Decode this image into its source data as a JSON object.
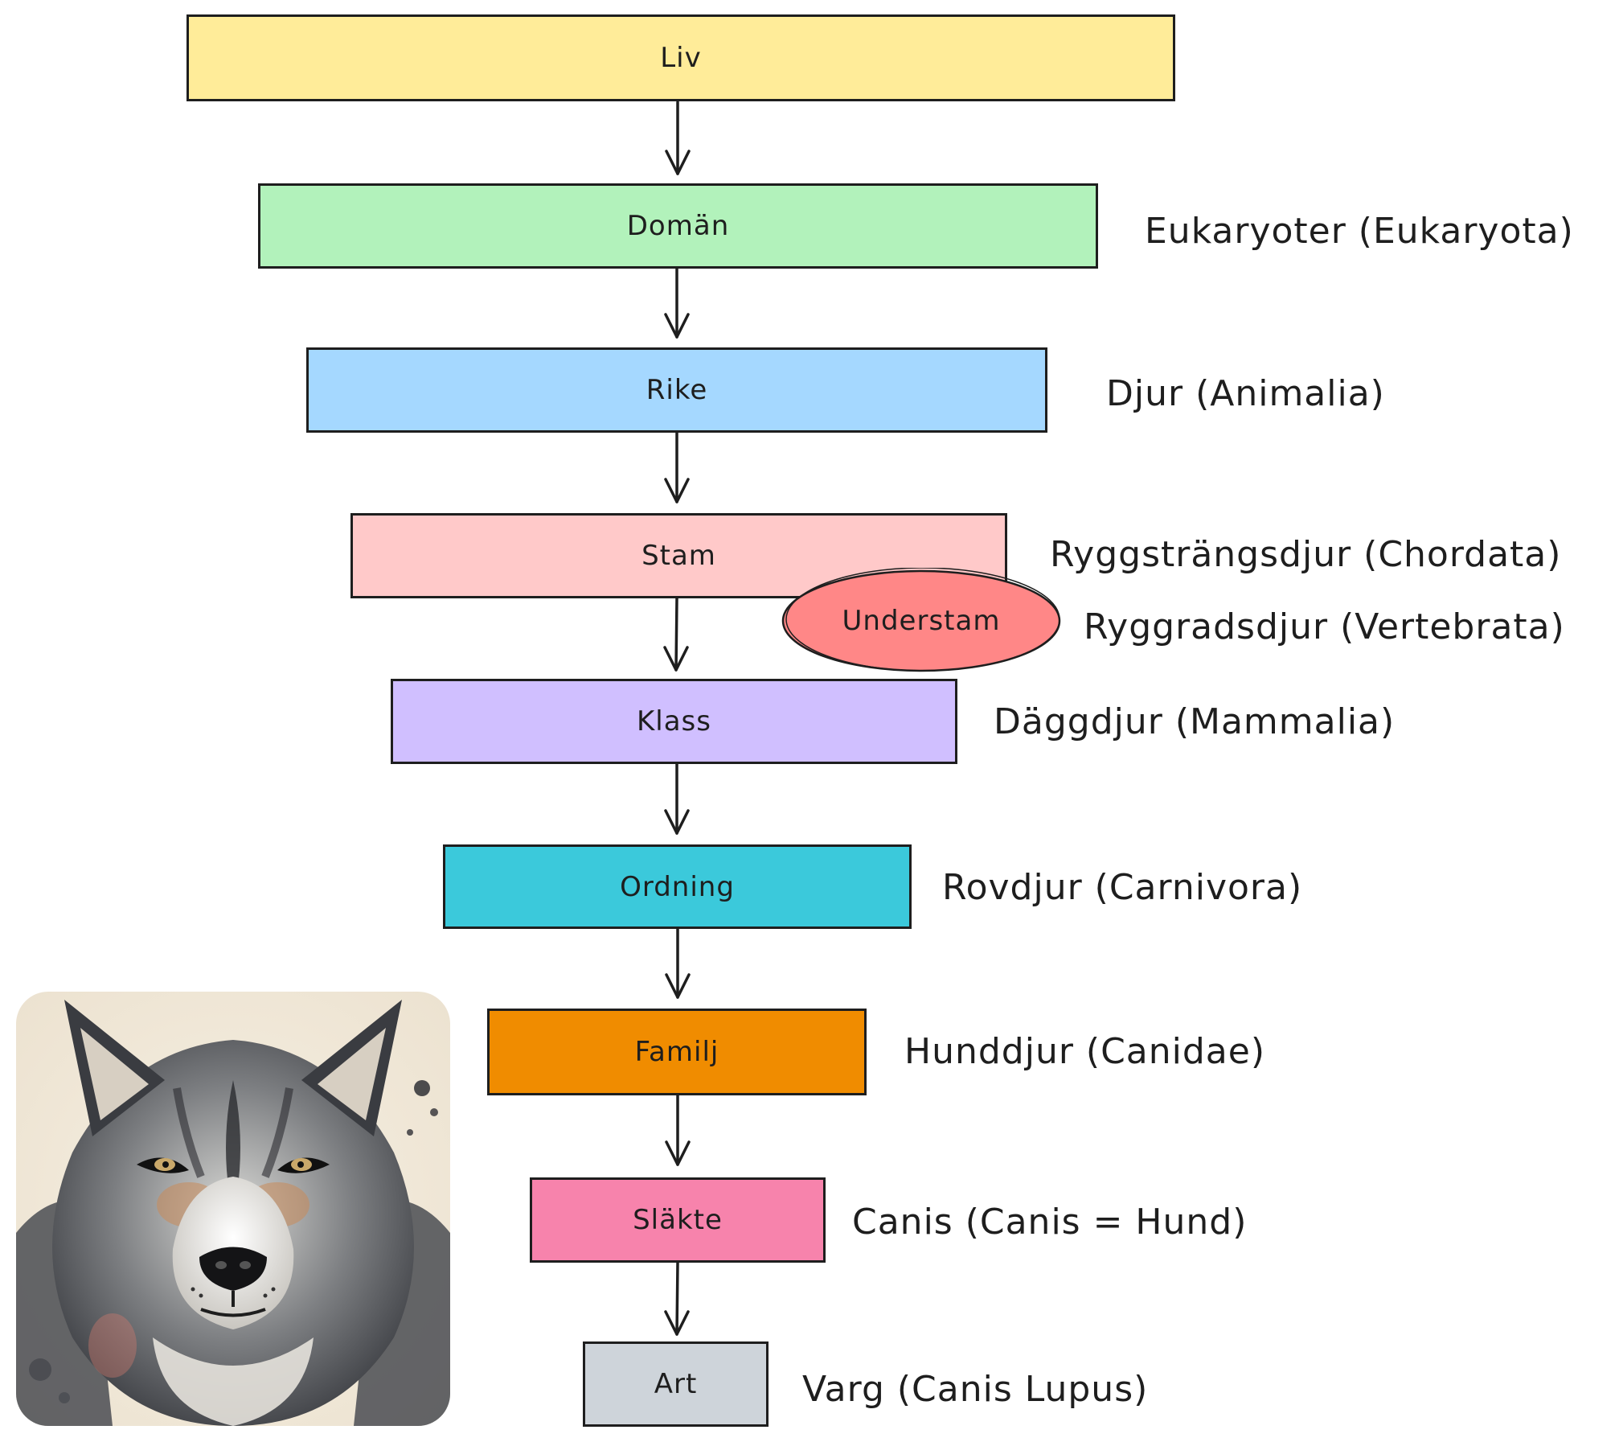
{
  "ranks": [
    {
      "rank": "Liv",
      "taxon": "",
      "color": "#ffec99"
    },
    {
      "rank": "Domän",
      "taxon": "Eukaryoter (Eukaryota)",
      "color": "#b2f2bb"
    },
    {
      "rank": "Rike",
      "taxon": "Djur (Animalia)",
      "color": "#a5d8ff"
    },
    {
      "rank": "Stam",
      "taxon": "Ryggsträngsdjur (Chordata)",
      "color": "#ffc9c9"
    },
    {
      "rank": "Klass",
      "taxon": "Däggdjur (Mammalia)",
      "color": "#d0bfff"
    },
    {
      "rank": "Ordning",
      "taxon": "Rovdjur (Carnivora)",
      "color": "#3bc9db"
    },
    {
      "rank": "Familj",
      "taxon": "Hunddjur (Canidae)",
      "color": "#f08c00"
    },
    {
      "rank": "Släkte",
      "taxon": "Canis (Canis = Hund)",
      "color": "#f783ac"
    },
    {
      "rank": "Art",
      "taxon": "Varg (Canis Lupus)",
      "color": "#ced4da"
    }
  ],
  "subphylum": {
    "rank": "Understam",
    "taxon": "Ryggradsdjur (Vertebrata)",
    "color": "#ff8787"
  },
  "illustration": {
    "subject": "wolf-watercolor"
  }
}
